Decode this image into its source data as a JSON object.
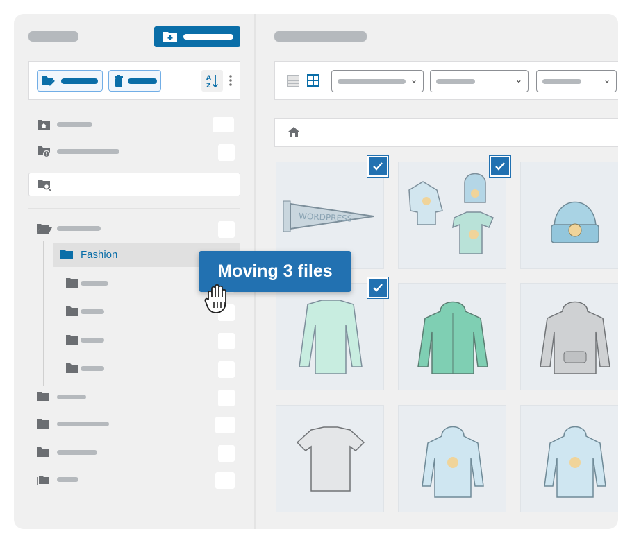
{
  "sidebar": {
    "active_folder": "Fashion",
    "accent_color": "#0a6ea8"
  },
  "drag_tooltip": "Moving 3 files",
  "grid": {
    "items": [
      {
        "icon": "pennant-image",
        "checked": true
      },
      {
        "icon": "clothing-set-image",
        "checked": true
      },
      {
        "icon": "beanie-image",
        "checked": false
      },
      {
        "icon": "long-sleeve-image",
        "checked": true
      },
      {
        "icon": "zip-hoodie-image",
        "checked": false
      },
      {
        "icon": "grey-hoodie-image",
        "checked": false
      },
      {
        "icon": "tshirt-image",
        "checked": false
      },
      {
        "icon": "hoodie-image",
        "checked": false
      },
      {
        "icon": "hoodie-image",
        "checked": false
      }
    ]
  }
}
